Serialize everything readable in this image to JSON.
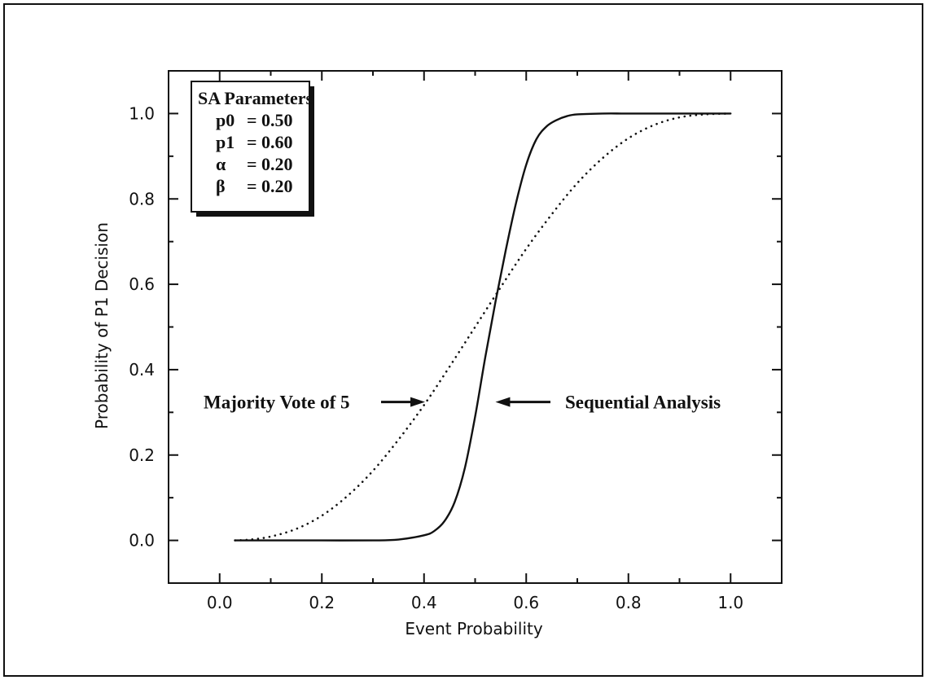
{
  "chart_data": {
    "type": "line",
    "xlabel": "Event Probability",
    "ylabel": "Probability of P1 Decision",
    "xlim": [
      -0.1,
      1.1
    ],
    "ylim": [
      -0.1,
      1.1
    ],
    "x_ticks": [
      "0.0",
      "0.2",
      "0.4",
      "0.6",
      "0.8",
      "1.0"
    ],
    "y_ticks": [
      "0.0",
      "0.2",
      "0.4",
      "0.6",
      "0.8",
      "1.0"
    ],
    "grid": false,
    "series": [
      {
        "name": "Sequential Analysis",
        "style": "solid",
        "color": "#111111",
        "x": [
          0.03,
          0.1,
          0.2,
          0.3,
          0.35,
          0.4,
          0.42,
          0.44,
          0.46,
          0.48,
          0.5,
          0.52,
          0.54,
          0.56,
          0.58,
          0.6,
          0.62,
          0.64,
          0.66,
          0.68,
          0.7,
          0.75,
          0.8,
          0.9,
          1.0
        ],
        "y": [
          0.0,
          0.0,
          0.0,
          0.0,
          0.002,
          0.012,
          0.022,
          0.045,
          0.09,
          0.17,
          0.29,
          0.43,
          0.56,
          0.68,
          0.79,
          0.88,
          0.94,
          0.97,
          0.985,
          0.994,
          0.998,
          1.0,
          1.0,
          1.0,
          1.0
        ]
      },
      {
        "name": "Majority Vote of 5",
        "style": "dotted",
        "color": "#111111",
        "x": [
          0.03,
          0.06,
          0.1,
          0.15,
          0.2,
          0.25,
          0.3,
          0.35,
          0.4,
          0.45,
          0.5,
          0.55,
          0.6,
          0.65,
          0.7,
          0.75,
          0.8,
          0.85,
          0.9,
          0.95,
          1.0
        ],
        "y": [
          0.0,
          0.002,
          0.009,
          0.027,
          0.058,
          0.104,
          0.163,
          0.236,
          0.317,
          0.407,
          0.5,
          0.593,
          0.683,
          0.764,
          0.837,
          0.896,
          0.942,
          0.973,
          0.991,
          0.998,
          1.0
        ]
      }
    ],
    "annotations": [
      {
        "text": "Majority Vote of 5",
        "points_to": "Majority Vote of 5",
        "arrow_tip": [
          0.41,
          0.33
        ]
      },
      {
        "text": "Sequential Analysis",
        "points_to": "Sequential Analysis",
        "arrow_tip": [
          0.535,
          0.33
        ]
      }
    ],
    "legend_box": {
      "title": "SA Parameters",
      "lines": [
        {
          "name": "p0",
          "value": "= 0.50"
        },
        {
          "name": "p1",
          "value": "= 0.60"
        },
        {
          "name": "α",
          "value": "= 0.20"
        },
        {
          "name": "β",
          "value": "= 0.20"
        }
      ],
      "placement": "top-left"
    }
  }
}
